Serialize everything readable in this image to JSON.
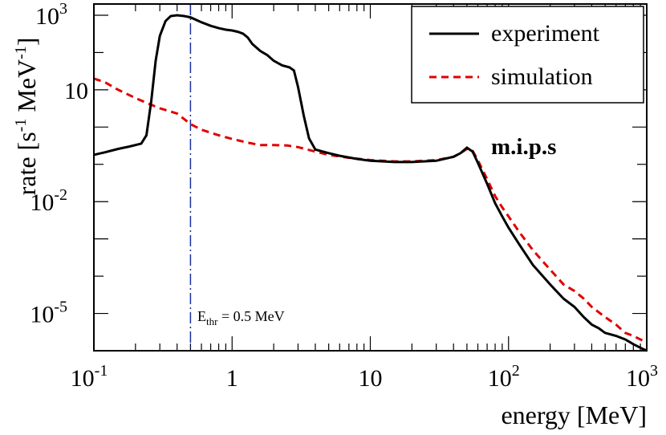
{
  "chart_data": {
    "type": "line",
    "title": "",
    "xlabel": "energy [MeV]",
    "ylabel_parts": [
      "rate [s",
      "-1",
      " MeV",
      "-1",
      "]"
    ],
    "x_scale": "log",
    "y_scale": "log",
    "xlim": [
      0.1,
      1000
    ],
    "ylim": [
      1e-06,
      2000
    ],
    "x_ticks": [
      {
        "value": 0.1,
        "base": "10",
        "exp": "-1"
      },
      {
        "value": 1,
        "base": "1",
        "exp": ""
      },
      {
        "value": 10,
        "base": "10",
        "exp": ""
      },
      {
        "value": 100,
        "base": "10",
        "exp": "2"
      },
      {
        "value": 1000,
        "base": "10",
        "exp": "3"
      }
    ],
    "y_ticks": [
      {
        "value": 1000,
        "base": "10",
        "exp": "3"
      },
      {
        "value": 10,
        "base": "10",
        "exp": ""
      },
      {
        "value": 0.01,
        "base": "10",
        "exp": "-2"
      },
      {
        "value": 1e-05,
        "base": "10",
        "exp": "-5"
      }
    ],
    "legend_position": "top-right",
    "series": [
      {
        "name": "experiment",
        "color": "#000000",
        "style": "solid",
        "points": [
          [
            0.1,
            0.18
          ],
          [
            0.12,
            0.21
          ],
          [
            0.15,
            0.26
          ],
          [
            0.18,
            0.3
          ],
          [
            0.2,
            0.33
          ],
          [
            0.22,
            0.36
          ],
          [
            0.24,
            0.6
          ],
          [
            0.26,
            5
          ],
          [
            0.28,
            60
          ],
          [
            0.3,
            280
          ],
          [
            0.33,
            700
          ],
          [
            0.36,
            950
          ],
          [
            0.4,
            1000
          ],
          [
            0.45,
            950
          ],
          [
            0.5,
            880
          ],
          [
            0.6,
            650
          ],
          [
            0.7,
            520
          ],
          [
            0.8,
            450
          ],
          [
            0.9,
            410
          ],
          [
            1.0,
            390
          ],
          [
            1.1,
            360
          ],
          [
            1.2,
            320
          ],
          [
            1.3,
            250
          ],
          [
            1.4,
            170
          ],
          [
            1.6,
            110
          ],
          [
            1.8,
            85
          ],
          [
            2.0,
            60
          ],
          [
            2.3,
            45
          ],
          [
            2.6,
            40
          ],
          [
            2.8,
            33
          ],
          [
            3.0,
            12
          ],
          [
            3.3,
            2
          ],
          [
            3.6,
            0.5
          ],
          [
            4.0,
            0.25
          ],
          [
            5.0,
            0.2
          ],
          [
            6.0,
            0.17
          ],
          [
            8.0,
            0.14
          ],
          [
            10,
            0.125
          ],
          [
            15,
            0.115
          ],
          [
            20,
            0.115
          ],
          [
            30,
            0.125
          ],
          [
            40,
            0.16
          ],
          [
            45,
            0.2
          ],
          [
            50,
            0.28
          ],
          [
            55,
            0.22
          ],
          [
            60,
            0.11
          ],
          [
            70,
            0.03
          ],
          [
            80,
            0.009
          ],
          [
            90,
            0.004
          ],
          [
            100,
            0.002
          ],
          [
            120,
            0.0007
          ],
          [
            150,
            0.0002
          ],
          [
            200,
            6e-05
          ],
          [
            250,
            2.5e-05
          ],
          [
            300,
            1.5e-05
          ],
          [
            350,
            8e-06
          ],
          [
            400,
            5e-06
          ],
          [
            450,
            4e-06
          ],
          [
            500,
            3e-06
          ],
          [
            600,
            2.5e-06
          ],
          [
            700,
            2e-06
          ],
          [
            800,
            1.5e-06
          ],
          [
            900,
            1.2e-06
          ],
          [
            1000,
            1e-06
          ]
        ]
      },
      {
        "name": "simulation",
        "color": "#e00000",
        "style": "dashed",
        "points": [
          [
            0.1,
            20
          ],
          [
            0.12,
            16
          ],
          [
            0.15,
            10
          ],
          [
            0.2,
            6
          ],
          [
            0.25,
            4.2
          ],
          [
            0.3,
            3.2
          ],
          [
            0.4,
            2.3
          ],
          [
            0.5,
            1.2
          ],
          [
            0.6,
            0.85
          ],
          [
            0.8,
            0.6
          ],
          [
            1.0,
            0.48
          ],
          [
            1.3,
            0.38
          ],
          [
            1.6,
            0.33
          ],
          [
            2.0,
            0.33
          ],
          [
            2.5,
            0.32
          ],
          [
            3.0,
            0.29
          ],
          [
            4.0,
            0.22
          ],
          [
            5.0,
            0.18
          ],
          [
            7.0,
            0.15
          ],
          [
            10,
            0.13
          ],
          [
            15,
            0.12
          ],
          [
            20,
            0.12
          ],
          [
            30,
            0.13
          ],
          [
            40,
            0.16
          ],
          [
            45,
            0.2
          ],
          [
            50,
            0.26
          ],
          [
            55,
            0.23
          ],
          [
            60,
            0.13
          ],
          [
            70,
            0.04
          ],
          [
            80,
            0.014
          ],
          [
            90,
            0.007
          ],
          [
            100,
            0.004
          ],
          [
            120,
            0.0015
          ],
          [
            150,
            0.0005
          ],
          [
            200,
            0.00015
          ],
          [
            250,
            6e-05
          ],
          [
            300,
            4e-05
          ],
          [
            350,
            2.5e-05
          ],
          [
            400,
            1.5e-05
          ],
          [
            500,
            8e-06
          ],
          [
            600,
            5e-06
          ],
          [
            700,
            3e-06
          ],
          [
            800,
            2.5e-06
          ],
          [
            900,
            2e-06
          ],
          [
            1000,
            1.7e-06
          ]
        ]
      }
    ],
    "threshold": {
      "value": 0.5,
      "label_main": "E",
      "label_sub": "thr",
      "label_rest": " = 0.5 MeV",
      "color": "#1a2fa0"
    },
    "annotation": "m.i.p.s"
  }
}
